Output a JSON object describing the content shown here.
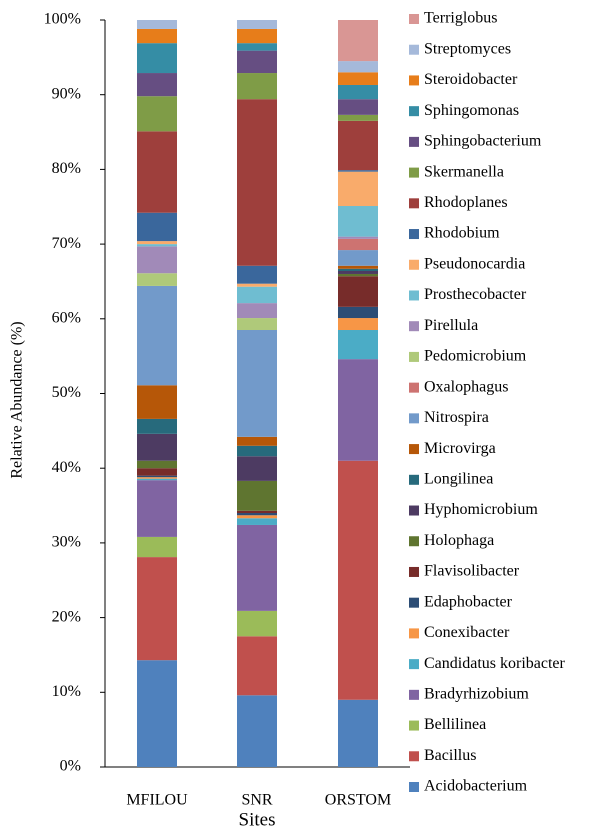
{
  "chart_data": {
    "type": "stacked_bar",
    "x_label": "Sites",
    "y_label": "Relative Abundance (%)",
    "categories": [
      "MFILOU",
      "SNR",
      "ORSTOM"
    ],
    "ylim": [
      0,
      100
    ],
    "yticks": [
      {
        "value": 0,
        "label": "0%"
      },
      {
        "value": 10,
        "label": "10%"
      },
      {
        "value": 20,
        "label": "20%"
      },
      {
        "value": 30,
        "label": "30%"
      },
      {
        "value": 40,
        "label": "40%"
      },
      {
        "value": 50,
        "label": "50%"
      },
      {
        "value": 60,
        "label": "60%"
      },
      {
        "value": 70,
        "label": "70%"
      },
      {
        "value": 80,
        "label": "80%"
      },
      {
        "value": 90,
        "label": "90%"
      },
      {
        "value": 100,
        "label": "100%"
      }
    ],
    "legend": "right",
    "series": [
      {
        "name": "Acidobacterium",
        "color": "#4f81bd",
        "values": [
          14.3,
          9.6,
          9.0
        ]
      },
      {
        "name": "Bacillus",
        "color": "#c0504d",
        "values": [
          13.8,
          7.9,
          32.0
        ]
      },
      {
        "name": "Bellilinea",
        "color": "#9bbb59",
        "values": [
          2.7,
          3.4,
          0
        ]
      },
      {
        "name": "Bradyrhizobium",
        "color": "#8064a2",
        "values": [
          7.6,
          11.5,
          13.6
        ]
      },
      {
        "name": "Candidatus koribacter",
        "color": "#4bacc6",
        "values": [
          0.2,
          0.9,
          3.9
        ]
      },
      {
        "name": "Conexibacter",
        "color": "#f79646",
        "values": [
          0.2,
          0.4,
          1.6
        ]
      },
      {
        "name": "Edaphobacter",
        "color": "#2c4d75",
        "values": [
          0.2,
          0.3,
          1.5
        ]
      },
      {
        "name": "Flavisolibacter",
        "color": "#772c2a",
        "values": [
          1.0,
          0.3,
          4.1
        ]
      },
      {
        "name": "Holophaga",
        "color": "#5f7530",
        "values": [
          1.0,
          4.0,
          0.3
        ]
      },
      {
        "name": "Hyphomicrobium",
        "color": "#4d3b62",
        "values": [
          3.6,
          3.3,
          0.4
        ]
      },
      {
        "name": "Longilinea",
        "color": "#276a7c",
        "values": [
          2.0,
          1.4,
          0.3
        ]
      },
      {
        "name": "Microvirga",
        "color": "#b65708",
        "values": [
          4.5,
          1.2,
          0.4
        ]
      },
      {
        "name": "Nitrospira",
        "color": "#729aca",
        "values": [
          13.3,
          14.3,
          2.1
        ]
      },
      {
        "name": "Oxalophagus",
        "color": "#cd7371",
        "values": [
          0,
          0,
          1.5
        ]
      },
      {
        "name": "Pedomicrobium",
        "color": "#afc97a",
        "values": [
          1.7,
          1.6,
          0
        ]
      },
      {
        "name": "Pirellula",
        "color": "#a18ab8",
        "values": [
          3.6,
          2.0,
          0.3
        ]
      },
      {
        "name": "Prosthecobacter",
        "color": "#6fbdd1",
        "values": [
          0.3,
          2.2,
          4.1
        ]
      },
      {
        "name": "Pseudonocardia",
        "color": "#f9ab6b",
        "values": [
          0.4,
          0.4,
          4.6
        ]
      },
      {
        "name": "Rhodobium",
        "color": "#3a679c",
        "values": [
          3.8,
          2.4,
          0.2
        ]
      },
      {
        "name": "Rhodoplanes",
        "color": "#9e3f3c",
        "values": [
          10.9,
          22.3,
          6.6
        ]
      },
      {
        "name": "Skermanella",
        "color": "#7f9c47",
        "values": [
          4.7,
          3.5,
          0.8
        ]
      },
      {
        "name": "Sphingobacterium",
        "color": "#664e82",
        "values": [
          3.1,
          3.0,
          2.1
        ]
      },
      {
        "name": "Sphingomonas",
        "color": "#358da5",
        "values": [
          4.0,
          1.0,
          1.9
        ]
      },
      {
        "name": "Steroidobacter",
        "color": "#e77d1a",
        "values": [
          1.9,
          1.9,
          1.7
        ]
      },
      {
        "name": "Streptomyces",
        "color": "#a5b9da",
        "values": [
          1.2,
          1.2,
          1.5
        ]
      },
      {
        "name": "Terriglobus",
        "color": "#d99694",
        "values": [
          0,
          0,
          5.5
        ]
      }
    ]
  }
}
